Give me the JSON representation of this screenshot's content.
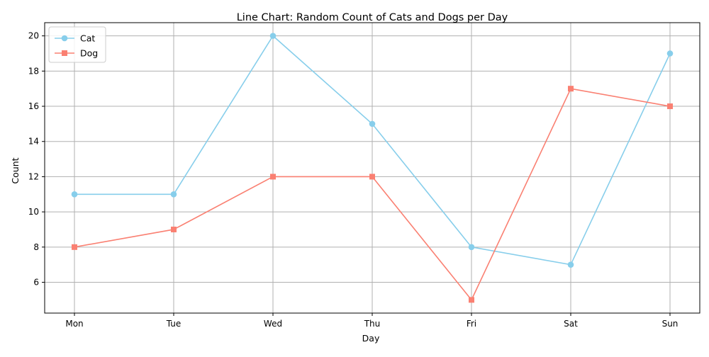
{
  "chart_data": {
    "type": "line",
    "title": "Line Chart: Random Count of Cats and Dogs per Day",
    "xlabel": "Day",
    "ylabel": "Count",
    "categories": [
      "Mon",
      "Tue",
      "Wed",
      "Thu",
      "Fri",
      "Sat",
      "Sun"
    ],
    "ylim": [
      4.25,
      20.75
    ],
    "yticks": [
      6,
      8,
      10,
      12,
      14,
      16,
      18,
      20
    ],
    "grid": true,
    "legend_position": "top-left",
    "series": [
      {
        "name": "Cat",
        "values": [
          11,
          11,
          20,
          15,
          8,
          7,
          19
        ],
        "color": "#87CEEB",
        "marker": "circle"
      },
      {
        "name": "Dog",
        "values": [
          8,
          9,
          12,
          12,
          5,
          17,
          16
        ],
        "color": "#FA8072",
        "marker": "square"
      }
    ]
  }
}
